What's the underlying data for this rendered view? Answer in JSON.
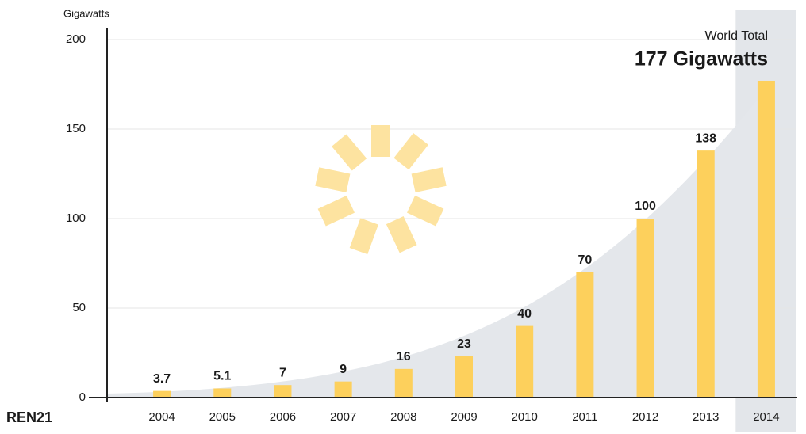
{
  "chart_data": {
    "type": "bar",
    "y_axis_label": "Gigawatts",
    "categories": [
      "2004",
      "2005",
      "2006",
      "2007",
      "2008",
      "2009",
      "2010",
      "2011",
      "2012",
      "2013",
      "2014"
    ],
    "values": [
      3.7,
      5.1,
      7,
      9,
      16,
      23,
      40,
      70,
      100,
      138,
      177
    ],
    "value_labels": [
      "3.7",
      "5.1",
      "7",
      "9",
      "16",
      "23",
      "40",
      "70",
      "100",
      "138",
      null
    ],
    "color": "#fdd05c",
    "ylim": [
      0,
      200
    ],
    "yticks": [
      0,
      50,
      100,
      150,
      200
    ],
    "grid": true,
    "highlight": "2014",
    "highlight_color": "#e3e6ea",
    "annotation": {
      "title": "World Total",
      "value": "177 Gigawatts"
    },
    "source": "REN21"
  }
}
